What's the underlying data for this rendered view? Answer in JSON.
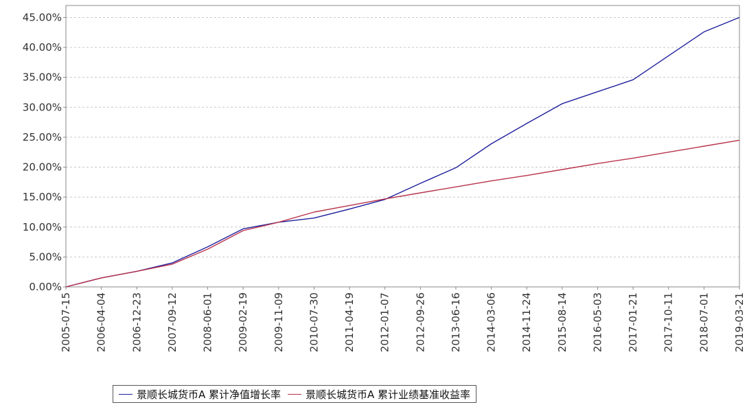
{
  "chart_data": {
    "type": "line",
    "x": [
      "2005-07-15",
      "2006-04-04",
      "2006-12-23",
      "2007-09-12",
      "2008-06-01",
      "2009-02-19",
      "2009-11-09",
      "2010-07-30",
      "2011-04-19",
      "2012-01-07",
      "2012-09-26",
      "2013-06-16",
      "2014-03-06",
      "2014-11-24",
      "2015-08-14",
      "2016-05-03",
      "2017-01-21",
      "2017-10-11",
      "2018-07-01",
      "2019-03-21"
    ],
    "tick_labels": [
      "2005-07-15",
      "2006-04-04",
      "2006-12-23",
      "2007-09-12",
      "2008-06-01",
      "2009-02-19",
      "2009-11-09",
      "2010-07-30",
      "2011-04-19",
      "2012-01-07",
      "2012-09-26",
      "2013-06-16",
      "2014-03-06",
      "2014-11-24",
      "2015-08-14",
      "2016-05-03",
      "2017-01-21",
      "2017-10-11",
      "2018-07-01",
      "2019-03-21"
    ],
    "y_ticks": [
      "0.00%",
      "5.00%",
      "10.00%",
      "15.00%",
      "20.00%",
      "25.00%",
      "30.00%",
      "35.00%",
      "40.00%",
      "45.00%"
    ],
    "ylim": [
      0,
      47
    ],
    "y_unit": "%",
    "grid": true,
    "legend_position": "bottom",
    "series": [
      {
        "name": "景顺长城货币A 累计净值增长率",
        "color": "#1f1f9e",
        "values": [
          0.0,
          1.5,
          2.6,
          4.0,
          6.7,
          9.7,
          10.8,
          11.5,
          13.0,
          14.6,
          17.3,
          19.9,
          23.9,
          27.3,
          30.6,
          32.6,
          34.6,
          38.6,
          42.6,
          45.0
        ]
      },
      {
        "name": "景顺长城货币A 累计业绩基准收益率",
        "color": "#b8324a",
        "values": [
          0.0,
          1.5,
          2.6,
          3.8,
          6.3,
          9.4,
          10.8,
          12.5,
          13.6,
          14.7,
          15.7,
          16.7,
          17.7,
          18.6,
          19.6,
          20.6,
          21.5,
          22.5,
          23.5,
          24.5
        ]
      }
    ]
  }
}
